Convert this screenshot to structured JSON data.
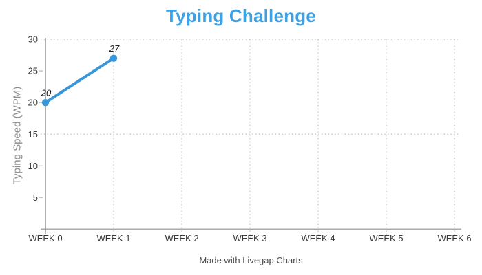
{
  "header": {
    "title": "Typing Challenge"
  },
  "footer": {
    "credit": "Made with Livegap Charts"
  },
  "chart_data": {
    "type": "line",
    "title": "Typing Challenge",
    "categories": [
      "WEEK 0",
      "WEEK 1",
      "WEEK 2",
      "WEEK 3",
      "WEEK 4",
      "WEEK 5",
      "WEEK 6"
    ],
    "series": [
      {
        "name": "Typing Speed",
        "values": [
          20,
          27
        ],
        "point_labels": [
          "20",
          "27"
        ]
      }
    ],
    "xlabel": "",
    "ylabel": "Typing Speed (WPM)",
    "ylim": [
      0,
      30
    ],
    "yticks": [
      5,
      10,
      15,
      20,
      25,
      30
    ],
    "grid_y_values": [
      15,
      30
    ],
    "grid_x_indices": [
      1,
      2,
      3,
      4,
      5,
      6
    ],
    "grid": "dotted",
    "legend": "none",
    "colors": {
      "title": "#3da1e3",
      "series": "#3896d9",
      "grid": "#c6c6c6",
      "x_axis": "#ababab",
      "y_axis": "#7d7d7d",
      "tick_label": "#383838",
      "point_label": "#1f1f1f",
      "y_title": "#8c8c8c",
      "footer": "#4a4a4a"
    }
  }
}
